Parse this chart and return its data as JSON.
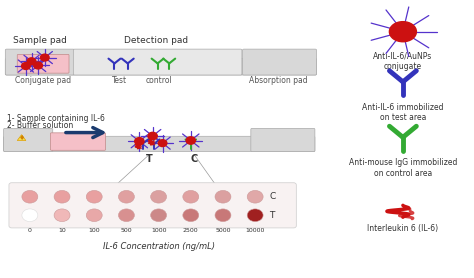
{
  "concentrations": [
    "0",
    "10",
    "100",
    "500",
    "1000",
    "2500",
    "5000",
    "10000"
  ],
  "C_colors": [
    "#e8a0a0",
    "#e8a0a0",
    "#e8a0a0",
    "#e0a0a0",
    "#dba0a0",
    "#e0a0a0",
    "#dba0a0",
    "#e0a8a8"
  ],
  "T_colors": [
    "#ffffff",
    "#f0b8b8",
    "#e8a8a8",
    "#d89090",
    "#cc8888",
    "#c87878",
    "#c87878",
    "#a02020"
  ],
  "xlabel": "IL-6 Concentration (ng/mL)",
  "pad_color": "#d8d8d8",
  "pink_pad": "#f5c0c8",
  "arrow_color": "#1a3a6e",
  "background": "#ffffff",
  "top_labels": [
    "Sample pad",
    "Detection pad"
  ],
  "bottom_labels": [
    "Conjugate pad",
    "Test",
    "control",
    "Absorption pad"
  ],
  "dot_row_labels": [
    "C",
    "T"
  ],
  "flow_labels": [
    "1- Sample containing IL-6",
    "2- Buffer solution"
  ],
  "aunp_color": "#cc1111",
  "aunp_spike_color": "#5533cc",
  "ab_blue_color": "#3333bb",
  "ab_green_color": "#33aa33"
}
